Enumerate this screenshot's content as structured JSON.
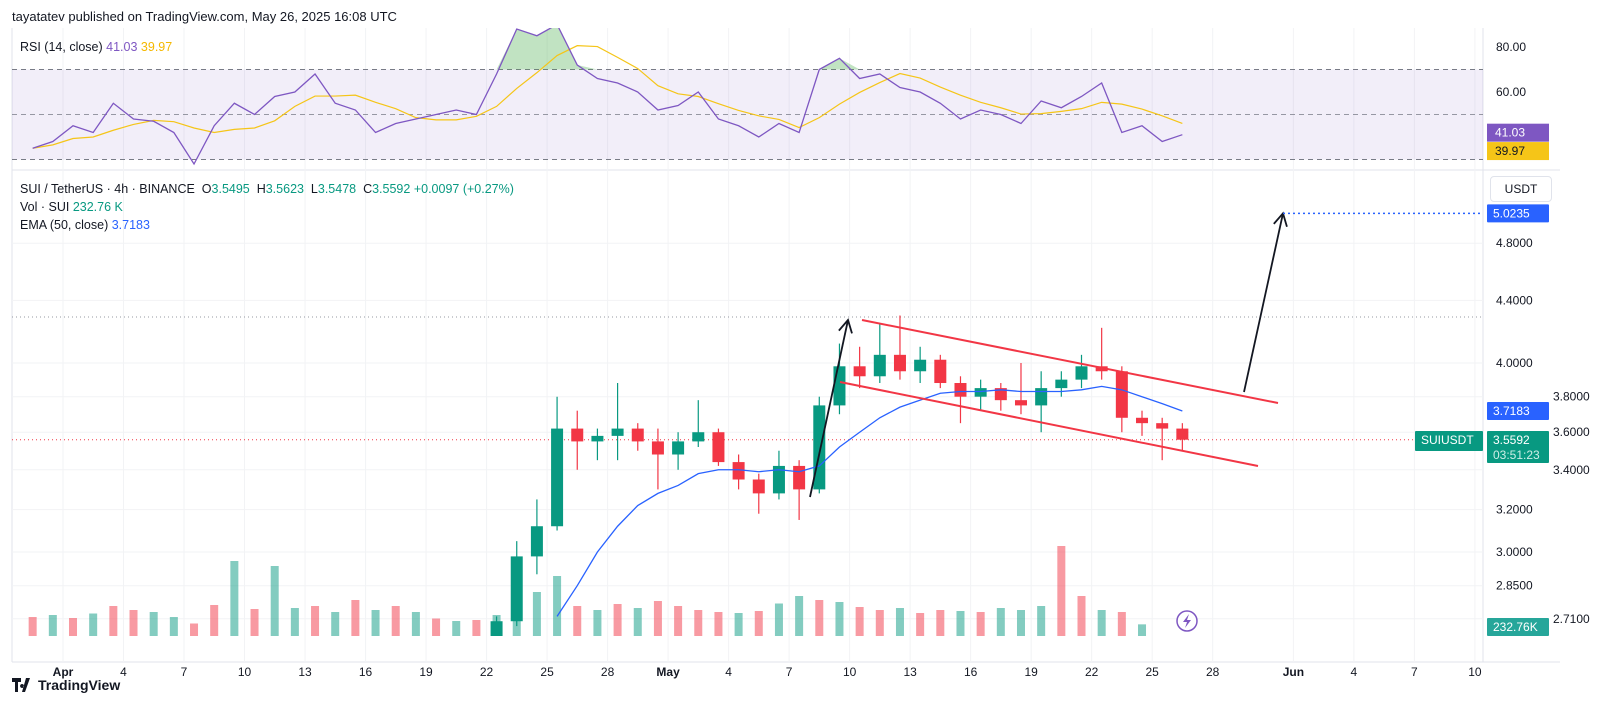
{
  "header": {
    "published": "tayatatev published on TradingView.com, May 26, 2025 16:08 UTC"
  },
  "rsi": {
    "label": "RSI (14, close)",
    "value": "41.03",
    "ma_value": "39.97",
    "ticks": [
      "80.00",
      "60.00"
    ],
    "tick_values": [
      80,
      60
    ],
    "bands": [
      70,
      50,
      30
    ]
  },
  "legend": {
    "symbol": "SUI / TetherUS · 4h · BINANCE",
    "o_label": "O",
    "o": "3.5495",
    "h_label": "H",
    "h": "3.5623",
    "l_label": "L",
    "l": "3.5478",
    "c_label": "C",
    "c": "3.5592",
    "change": "+0.0097 (+0.27%)",
    "vol_label": "Vol · SUI",
    "vol": "232.76 K",
    "ema_label": "EMA (50, close)",
    "ema": "3.7183"
  },
  "axis": {
    "currency": "USDT",
    "price_ticks": [
      "4.8000",
      "4.4000",
      "4.0000",
      "3.8000",
      "3.6000",
      "3.4000",
      "3.2000",
      "3.0000",
      "2.8500",
      "2.7100"
    ],
    "price_tick_values": [
      4.8,
      4.4,
      4.0,
      3.8,
      3.6,
      3.4,
      3.2,
      3.0,
      2.85,
      2.71
    ],
    "time_ticks": [
      {
        "label": "Apr",
        "day": 0,
        "bold": true
      },
      {
        "label": "4",
        "day": 3
      },
      {
        "label": "7",
        "day": 6
      },
      {
        "label": "10",
        "day": 9
      },
      {
        "label": "13",
        "day": 12
      },
      {
        "label": "16",
        "day": 15
      },
      {
        "label": "19",
        "day": 18
      },
      {
        "label": "22",
        "day": 21
      },
      {
        "label": "25",
        "day": 24
      },
      {
        "label": "28",
        "day": 27
      },
      {
        "label": "May",
        "day": 30,
        "bold": true
      },
      {
        "label": "4",
        "day": 33
      },
      {
        "label": "7",
        "day": 36
      },
      {
        "label": "10",
        "day": 39
      },
      {
        "label": "13",
        "day": 42
      },
      {
        "label": "16",
        "day": 45
      },
      {
        "label": "19",
        "day": 48
      },
      {
        "label": "22",
        "day": 51
      },
      {
        "label": "25",
        "day": 54
      },
      {
        "label": "28",
        "day": 57
      },
      {
        "label": "Jun",
        "day": 61,
        "bold": true
      },
      {
        "label": "4",
        "day": 64
      },
      {
        "label": "7",
        "day": 67
      },
      {
        "label": "10",
        "day": 70
      }
    ]
  },
  "badges": {
    "target": "5.0235",
    "ema": "3.7183",
    "symbol": "SUIUSDT",
    "price": "3.5592",
    "countdown": "03:51:23",
    "volume": "232.76K"
  },
  "colors": {
    "up": "#089981",
    "down": "#f23645",
    "ema": "#2962ff",
    "rsi": "#7e57c2",
    "rsi_ma": "#f5c518",
    "channel": "#f23645",
    "arrow": "#131722"
  },
  "footer": {
    "brand": "TradingView"
  },
  "chart_data": {
    "type": "candlestick",
    "y_scale": "log",
    "ylim": [
      2.66,
      5.3
    ],
    "candles_note_interval": "4h (shown aggregated by day)",
    "candles": [
      {
        "date": "2025-04-22",
        "o": 2.62,
        "h": 2.72,
        "l": 2.58,
        "c": 2.7
      },
      {
        "date": "2025-04-23",
        "o": 2.7,
        "h": 3.05,
        "l": 2.68,
        "c": 2.98
      },
      {
        "date": "2025-04-24",
        "o": 2.98,
        "h": 3.25,
        "l": 2.9,
        "c": 3.12
      },
      {
        "date": "2025-04-25",
        "o": 3.12,
        "h": 3.8,
        "l": 3.1,
        "c": 3.62
      },
      {
        "date": "2025-04-26",
        "o": 3.62,
        "h": 3.72,
        "l": 3.4,
        "c": 3.55
      },
      {
        "date": "2025-04-27",
        "o": 3.55,
        "h": 3.62,
        "l": 3.45,
        "c": 3.58
      },
      {
        "date": "2025-04-28",
        "o": 3.58,
        "h": 3.88,
        "l": 3.45,
        "c": 3.62
      },
      {
        "date": "2025-04-29",
        "o": 3.62,
        "h": 3.65,
        "l": 3.5,
        "c": 3.55
      },
      {
        "date": "2025-04-30",
        "o": 3.55,
        "h": 3.62,
        "l": 3.3,
        "c": 3.48
      },
      {
        "date": "2025-05-01",
        "o": 3.48,
        "h": 3.6,
        "l": 3.4,
        "c": 3.55
      },
      {
        "date": "2025-05-02",
        "o": 3.55,
        "h": 3.78,
        "l": 3.52,
        "c": 3.6
      },
      {
        "date": "2025-05-03",
        "o": 3.6,
        "h": 3.62,
        "l": 3.42,
        "c": 3.44
      },
      {
        "date": "2025-05-04",
        "o": 3.44,
        "h": 3.48,
        "l": 3.3,
        "c": 3.35
      },
      {
        "date": "2025-05-05",
        "o": 3.35,
        "h": 3.38,
        "l": 3.18,
        "c": 3.28
      },
      {
        "date": "2025-05-06",
        "o": 3.28,
        "h": 3.5,
        "l": 3.25,
        "c": 3.42
      },
      {
        "date": "2025-05-07",
        "o": 3.42,
        "h": 3.45,
        "l": 3.15,
        "c": 3.3
      },
      {
        "date": "2025-05-08",
        "o": 3.3,
        "h": 3.8,
        "l": 3.28,
        "c": 3.75
      },
      {
        "date": "2025-05-09",
        "o": 3.75,
        "h": 4.12,
        "l": 3.7,
        "c": 3.98
      },
      {
        "date": "2025-05-10",
        "o": 3.98,
        "h": 4.1,
        "l": 3.85,
        "c": 3.92
      },
      {
        "date": "2025-05-11",
        "o": 3.92,
        "h": 4.25,
        "l": 3.88,
        "c": 4.05
      },
      {
        "date": "2025-05-12",
        "o": 4.05,
        "h": 4.3,
        "l": 3.9,
        "c": 3.95
      },
      {
        "date": "2025-05-13",
        "o": 3.95,
        "h": 4.1,
        "l": 3.88,
        "c": 4.02
      },
      {
        "date": "2025-05-14",
        "o": 4.02,
        "h": 4.05,
        "l": 3.85,
        "c": 3.88
      },
      {
        "date": "2025-05-15",
        "o": 3.88,
        "h": 3.92,
        "l": 3.65,
        "c": 3.8
      },
      {
        "date": "2025-05-16",
        "o": 3.8,
        "h": 3.9,
        "l": 3.72,
        "c": 3.85
      },
      {
        "date": "2025-05-17",
        "o": 3.85,
        "h": 3.88,
        "l": 3.72,
        "c": 3.78
      },
      {
        "date": "2025-05-18",
        "o": 3.78,
        "h": 4.0,
        "l": 3.7,
        "c": 3.75
      },
      {
        "date": "2025-05-19",
        "o": 3.75,
        "h": 3.95,
        "l": 3.6,
        "c": 3.85
      },
      {
        "date": "2025-05-20",
        "o": 3.85,
        "h": 3.95,
        "l": 3.8,
        "c": 3.9
      },
      {
        "date": "2025-05-21",
        "o": 3.9,
        "h": 4.05,
        "l": 3.85,
        "c": 3.98
      },
      {
        "date": "2025-05-22",
        "o": 3.98,
        "h": 4.22,
        "l": 3.9,
        "c": 3.95
      },
      {
        "date": "2025-05-23",
        "o": 3.95,
        "h": 3.98,
        "l": 3.6,
        "c": 3.68
      },
      {
        "date": "2025-05-24",
        "o": 3.68,
        "h": 3.72,
        "l": 3.58,
        "c": 3.65
      },
      {
        "date": "2025-05-25",
        "o": 3.65,
        "h": 3.68,
        "l": 3.45,
        "c": 3.62
      },
      {
        "date": "2025-05-26",
        "o": 3.62,
        "h": 3.65,
        "l": 3.5,
        "c": 3.5592
      }
    ],
    "ema50": {
      "start": "2025-04-25",
      "values": [
        2.72,
        2.85,
        3.0,
        3.12,
        3.22,
        3.28,
        3.32,
        3.38,
        3.4,
        3.4,
        3.39,
        3.4,
        3.39,
        3.42,
        3.52,
        3.6,
        3.68,
        3.74,
        3.78,
        3.82,
        3.83,
        3.83,
        3.84,
        3.83,
        3.83,
        3.83,
        3.84,
        3.86,
        3.84,
        3.8,
        3.76,
        3.7183
      ]
    },
    "volume_k": {
      "start": "2025-03-30",
      "values": [
        380,
        420,
        360,
        450,
        600,
        520,
        480,
        380,
        250,
        620,
        1500,
        540,
        1400,
        560,
        600,
        480,
        720,
        520,
        600,
        480,
        350,
        300,
        320,
        420,
        900,
        880,
        1200,
        600,
        520,
        640,
        560,
        700,
        600,
        520,
        480,
        460,
        500,
        650,
        800,
        720,
        680,
        580,
        520,
        560,
        460,
        520,
        500,
        480,
        560,
        520,
        600,
        1800,
        800,
        520,
        480,
        233
      ],
      "up": [
        false,
        true,
        false,
        true,
        false,
        false,
        true,
        true,
        false,
        false,
        true,
        false,
        true,
        true,
        false,
        true,
        false,
        true,
        false,
        true,
        false,
        true,
        false,
        true,
        true,
        true,
        true,
        false,
        true,
        false,
        true,
        false,
        false,
        false,
        false,
        true,
        false,
        true,
        true,
        false,
        true,
        false,
        false,
        true,
        false,
        false,
        true,
        false,
        true,
        true,
        true,
        false,
        false,
        true,
        false,
        true
      ]
    },
    "rsi14": {
      "start": "2025-03-30",
      "values": [
        35,
        38,
        45,
        42,
        55,
        48,
        47,
        42,
        28,
        45,
        55,
        50,
        58,
        60,
        68,
        55,
        52,
        42,
        46,
        48,
        50,
        52,
        50,
        68,
        88,
        85,
        90,
        72,
        66,
        64,
        60,
        52,
        54,
        60,
        48,
        45,
        40,
        46,
        42,
        70,
        75,
        66,
        68,
        62,
        60,
        55,
        48,
        52,
        50,
        46,
        56,
        53,
        58,
        64,
        42,
        45,
        38,
        41.03
      ]
    },
    "target": 5.0235
  }
}
